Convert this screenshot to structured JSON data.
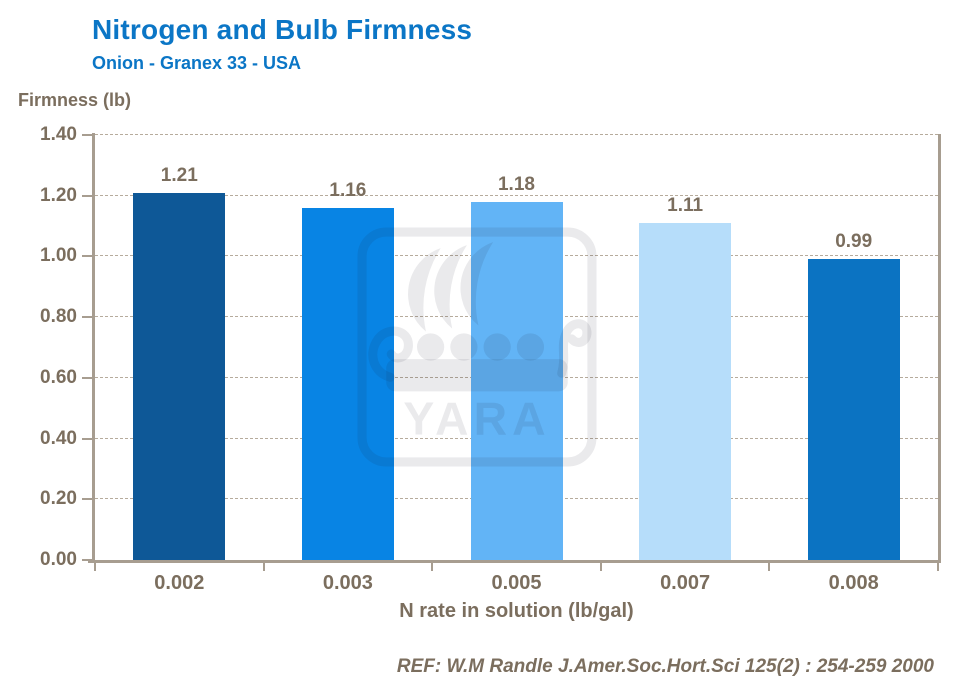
{
  "header": {
    "title": "Nitrogen and Bulb Firmness",
    "subtitle": "Onion - Granex 33 - USA"
  },
  "chart_data": {
    "type": "bar",
    "title": "Nitrogen and Bulb Firmness",
    "subtitle": "Onion - Granex 33 - USA",
    "ylabel": "Firmness (lb)",
    "xlabel": "N rate in solution (lb/gal)",
    "categories": [
      "0.002",
      "0.003",
      "0.005",
      "0.007",
      "0.008"
    ],
    "values": [
      1.21,
      1.16,
      1.18,
      1.11,
      0.99
    ],
    "value_labels": [
      "1.21",
      "1.16",
      "1.18",
      "1.11",
      "0.99"
    ],
    "bar_colors": [
      "#0e5897",
      "#0884e4",
      "#62b4f6",
      "#b6ddfa",
      "#0b73c2"
    ],
    "ylim": [
      0,
      1.4
    ],
    "ytick_step": 0.2,
    "yticks": [
      "1.40",
      "1.20",
      "1.00",
      "0.80",
      "0.60",
      "0.40",
      "0.20",
      "0.00"
    ],
    "grid": "horizontal dashed",
    "legend": "none"
  },
  "watermark": {
    "text": "YARA",
    "icon": "yara-viking-ship-logo"
  },
  "footer": {
    "reference": "REF: W.M Randle  J.Amer.Soc.Hort.Sci 125(2) : 254-259 2000"
  },
  "colors": {
    "title_blue": "#0b76c6",
    "axis_text": "#7b6e5e",
    "axis_line": "#a79d90",
    "gridline": "#b6ab9c",
    "background": "#ffffff"
  }
}
